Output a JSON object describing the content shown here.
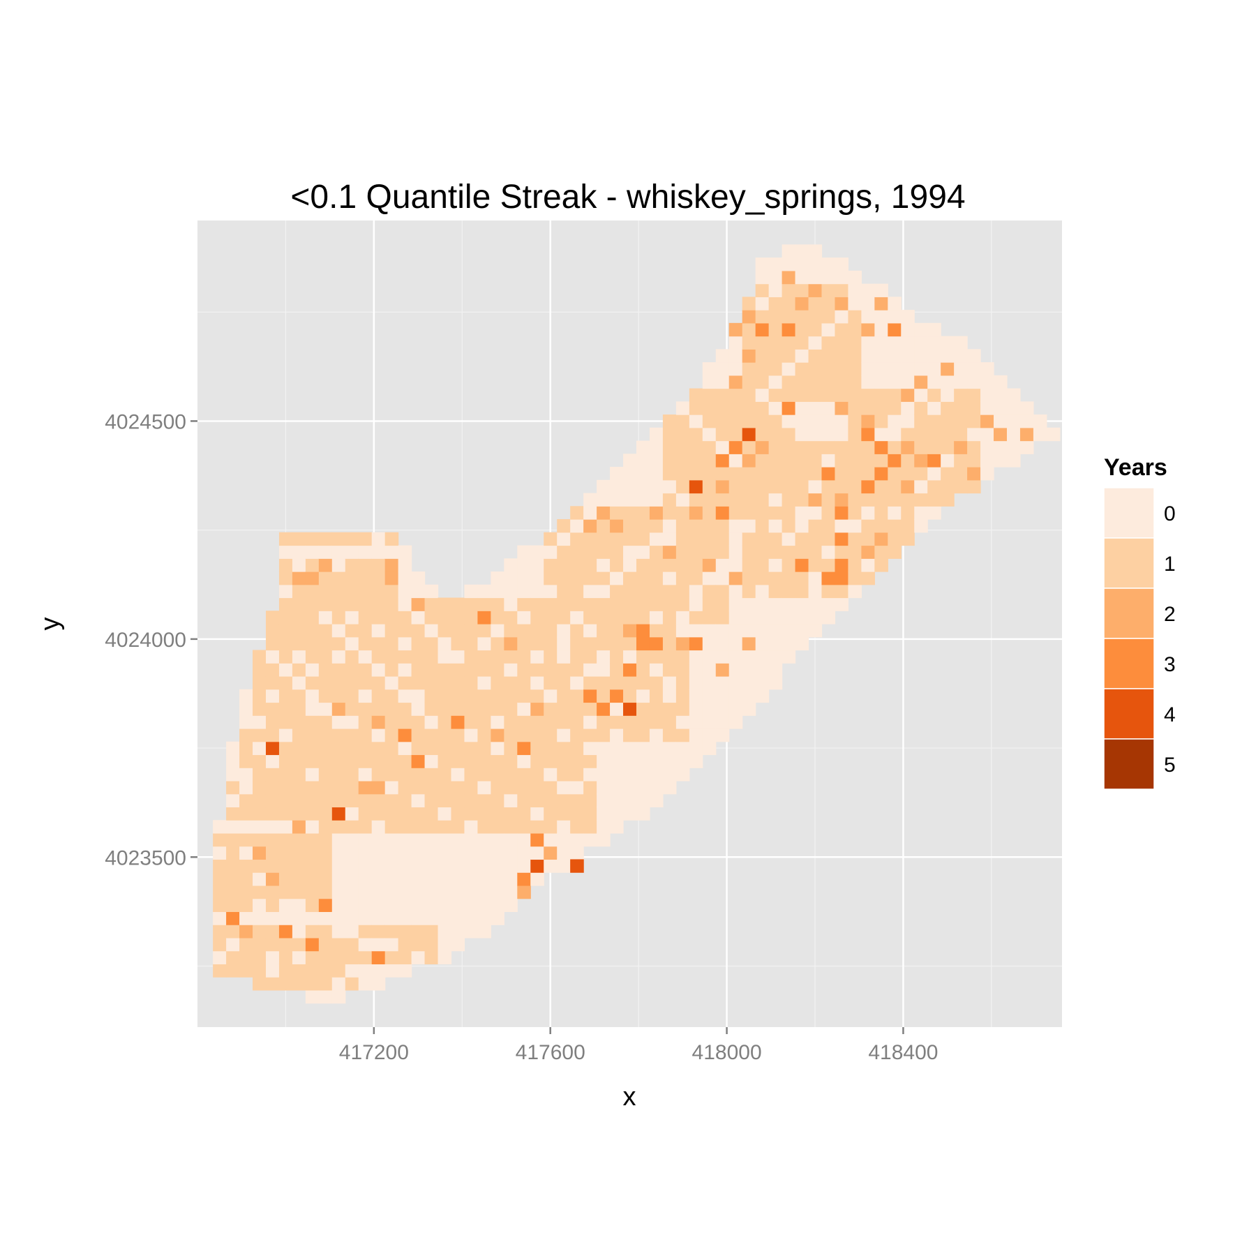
{
  "chart_data": {
    "type": "heatmap",
    "title": "<0.1 Quantile Streak - whiskey_springs, 1994",
    "xlabel": "x",
    "ylabel": "y",
    "xlim": [
      416800,
      418760
    ],
    "ylim": [
      4023110,
      4024960
    ],
    "x_ticks": [
      417200,
      417600,
      418000,
      418400
    ],
    "y_ticks": [
      4023500,
      4024000,
      4024500
    ],
    "cell_size": 30,
    "grid": true,
    "legend": {
      "title": "Years",
      "position": "right",
      "levels": [
        0,
        1,
        2,
        3,
        4,
        5
      ],
      "labels": [
        "0",
        "1",
        "2",
        "3",
        "4",
        "5"
      ],
      "colors": [
        "#fdebdd",
        "#fdd0a2",
        "#fdae6b",
        "#fd8d3c",
        "#e6550d",
        "#a63603"
      ]
    },
    "base_value": 0,
    "regions": [
      {
        "value": 1,
        "x": [
          416850,
          417100
        ],
        "y": [
          4023290,
          4023680
        ]
      },
      {
        "value": 1,
        "x": [
          416900,
          417140
        ],
        "y": [
          4023680,
          4023820
        ]
      },
      {
        "value": 1,
        "x": [
          416950,
          417420
        ],
        "y": [
          4023820,
          4024080
        ]
      },
      {
        "value": 1,
        "x": [
          417000,
          417260
        ],
        "y": [
          4024080,
          4024250
        ]
      },
      {
        "value": 1,
        "x": [
          417100,
          417700
        ],
        "y": [
          4023560,
          4023800
        ]
      },
      {
        "value": 1,
        "x": [
          417400,
          417900
        ],
        "y": [
          4023780,
          4024080
        ]
      },
      {
        "value": 1,
        "x": [
          417600,
          418000
        ],
        "y": [
          4024050,
          4024300
        ]
      },
      {
        "value": 1,
        "x": [
          417880,
          418150
        ],
        "y": [
          4024300,
          4024560
        ]
      },
      {
        "value": 1,
        "x": [
          418050,
          418420
        ],
        "y": [
          4024100,
          4024450
        ]
      },
      {
        "value": 1,
        "x": [
          418300,
          418560
        ],
        "y": [
          4024330,
          4024560
        ]
      },
      {
        "value": 1,
        "x": [
          418050,
          418300
        ],
        "y": [
          4024560,
          4024800
        ]
      },
      {
        "value": 1,
        "x": [
          416850,
          417160
        ],
        "y": [
          4023220,
          4023300
        ]
      },
      {
        "value": 1,
        "x": [
          417160,
          417340
        ],
        "y": [
          4023260,
          4023340
        ]
      }
    ],
    "cells": [
      [
        417110,
        4023590,
        4
      ],
      [
        416960,
        4023760,
        4
      ],
      [
        417210,
        4023260,
        3
      ],
      [
        417000,
        4023320,
        3
      ],
      [
        417070,
        4023300,
        3
      ],
      [
        416870,
        4023360,
        3
      ],
      [
        417100,
        4023380,
        3
      ],
      [
        416920,
        4023330,
        2
      ],
      [
        416980,
        4023440,
        2
      ],
      [
        416950,
        4023520,
        2
      ],
      [
        417040,
        4023560,
        2
      ],
      [
        417180,
        4023650,
        2
      ],
      [
        417210,
        4023650,
        2
      ],
      [
        417310,
        4023720,
        3
      ],
      [
        417280,
        4023780,
        3
      ],
      [
        417390,
        4023810,
        3
      ],
      [
        417480,
        4023790,
        2
      ],
      [
        417540,
        4023740,
        3
      ],
      [
        417560,
        4023530,
        3
      ],
      [
        417580,
        4023470,
        4
      ],
      [
        417600,
        4023520,
        2
      ],
      [
        417650,
        4023490,
        4
      ],
      [
        417530,
        4023460,
        3
      ],
      [
        417540,
        4023420,
        2
      ],
      [
        417680,
        4023860,
        3
      ],
      [
        417710,
        4023850,
        3
      ],
      [
        417780,
        4023840,
        4
      ],
      [
        417760,
        4023860,
        3
      ],
      [
        417770,
        4023940,
        3
      ],
      [
        417800,
        4023990,
        3
      ],
      [
        417840,
        4023990,
        3
      ],
      [
        417780,
        4024020,
        2
      ],
      [
        417820,
        4024030,
        3
      ],
      [
        417940,
        4023990,
        3
      ],
      [
        417900,
        4024000,
        2
      ],
      [
        418000,
        4023940,
        2
      ],
      [
        418060,
        4023980,
        2
      ],
      [
        417580,
        4023850,
        2
      ],
      [
        417450,
        4024060,
        3
      ],
      [
        417500,
        4024000,
        2
      ],
      [
        417200,
        4023820,
        2
      ],
      [
        417130,
        4023830,
        2
      ],
      [
        417310,
        4024080,
        2
      ],
      [
        417030,
        4024140,
        2
      ],
      [
        417060,
        4024130,
        2
      ],
      [
        417090,
        4024180,
        2
      ],
      [
        417250,
        4024140,
        2
      ],
      [
        417250,
        4024180,
        2
      ],
      [
        417920,
        4024360,
        4
      ],
      [
        418000,
        4024350,
        2
      ],
      [
        417920,
        4024300,
        2
      ],
      [
        418000,
        4024280,
        3
      ],
      [
        417980,
        4024410,
        3
      ],
      [
        418050,
        4024420,
        2
      ],
      [
        418060,
        4024470,
        4
      ],
      [
        418020,
        4024450,
        3
      ],
      [
        418070,
        4024440,
        2
      ],
      [
        418160,
        4024180,
        3
      ],
      [
        418240,
        4024150,
        3
      ],
      [
        418270,
        4024140,
        3
      ],
      [
        418250,
        4024180,
        3
      ],
      [
        418260,
        4024220,
        3
      ],
      [
        418270,
        4024280,
        3
      ],
      [
        418260,
        4024320,
        2
      ],
      [
        418200,
        4024330,
        2
      ],
      [
        418220,
        4024370,
        3
      ],
      [
        418320,
        4024360,
        3
      ],
      [
        418350,
        4024390,
        3
      ],
      [
        418380,
        4024410,
        3
      ],
      [
        418400,
        4024360,
        2
      ],
      [
        418430,
        4024410,
        2
      ],
      [
        418360,
        4024440,
        3
      ],
      [
        418310,
        4024480,
        3
      ],
      [
        418330,
        4024500,
        2
      ],
      [
        418480,
        4024400,
        3
      ],
      [
        418520,
        4024430,
        2
      ],
      [
        418550,
        4024390,
        2
      ],
      [
        418600,
        4024510,
        2
      ],
      [
        418610,
        4024460,
        2
      ],
      [
        418680,
        4024480,
        2
      ],
      [
        418420,
        4024450,
        2
      ],
      [
        418130,
        4024540,
        3
      ],
      [
        418270,
        4024530,
        2
      ],
      [
        418400,
        4024570,
        2
      ],
      [
        418440,
        4024600,
        2
      ],
      [
        418490,
        4024610,
        2
      ],
      [
        418380,
        4024720,
        3
      ],
      [
        418320,
        4024700,
        2
      ],
      [
        418080,
        4024720,
        3
      ],
      [
        418140,
        4024700,
        3
      ],
      [
        418060,
        4024730,
        2
      ],
      [
        418030,
        4024700,
        2
      ],
      [
        418060,
        4024640,
        2
      ],
      [
        418030,
        4024580,
        2
      ],
      [
        418350,
        4024780,
        2
      ],
      [
        418250,
        4024770,
        2
      ],
      [
        418170,
        4024760,
        2
      ],
      [
        418210,
        4024790,
        2
      ],
      [
        418140,
        4024820,
        2
      ],
      [
        417690,
        4024260,
        2
      ],
      [
        417720,
        4024300,
        2
      ],
      [
        417760,
        4024250,
        2
      ],
      [
        417830,
        4024290,
        2
      ],
      [
        417870,
        4024200,
        2
      ],
      [
        417950,
        4024180,
        2
      ],
      [
        418010,
        4024150,
        2
      ],
      [
        418330,
        4024200,
        2
      ],
      [
        418360,
        4024230,
        2
      ]
    ],
    "zero_cells": [
      [
        418180,
        4024880
      ],
      [
        418200,
        4024860
      ],
      [
        418230,
        4024850
      ],
      [
        418300,
        4024840
      ],
      [
        418300,
        4024810
      ],
      [
        418340,
        4024790
      ],
      [
        418400,
        4024770
      ],
      [
        418420,
        4024730
      ],
      [
        418520,
        4024620
      ],
      [
        418560,
        4024580
      ],
      [
        418620,
        4024540
      ],
      [
        418700,
        4024500
      ],
      [
        418680,
        4024460
      ],
      [
        418660,
        4024420
      ],
      [
        418580,
        4024480
      ],
      [
        418620,
        4024480
      ],
      [
        418500,
        4024560
      ],
      [
        418460,
        4024530
      ],
      [
        418420,
        4024500
      ],
      [
        418390,
        4024470
      ],
      [
        418380,
        4024300
      ],
      [
        418330,
        4024290
      ],
      [
        418300,
        4024260
      ],
      [
        418200,
        4024280
      ],
      [
        418140,
        4024230
      ],
      [
        418110,
        4024270
      ],
      [
        418120,
        4024320
      ],
      [
        418170,
        4024250
      ],
      [
        418210,
        4024110
      ],
      [
        418180,
        4024090
      ],
      [
        418110,
        4024060
      ],
      [
        418080,
        4024030
      ],
      [
        418030,
        4024090
      ],
      [
        417980,
        4024130
      ],
      [
        417940,
        4024090
      ],
      [
        417910,
        4024040
      ],
      [
        417850,
        4024060
      ],
      [
        417870,
        4024140
      ],
      [
        417860,
        4024230
      ],
      [
        417770,
        4024200
      ],
      [
        417720,
        4024170
      ],
      [
        417690,
        4024110
      ],
      [
        417660,
        4024060
      ],
      [
        417640,
        4024020
      ],
      [
        417630,
        4023970
      ],
      [
        417600,
        4024110
      ],
      [
        417570,
        4024160
      ],
      [
        417520,
        4024070
      ],
      [
        417560,
        4023900
      ],
      [
        417680,
        4023920
      ],
      [
        417720,
        4023950
      ],
      [
        417800,
        4023880
      ],
      [
        417880,
        4023880
      ],
      [
        417920,
        4023860
      ],
      [
        417930,
        4023830
      ],
      [
        417950,
        4023920
      ],
      [
        417850,
        4023940
      ],
      [
        417740,
        4023780
      ],
      [
        417680,
        4023700
      ],
      [
        417640,
        4023660
      ],
      [
        417720,
        4023680
      ],
      [
        417760,
        4023640
      ],
      [
        417790,
        4023710
      ],
      [
        417840,
        4023720
      ],
      [
        417360,
        4023960
      ],
      [
        417400,
        4023970
      ],
      [
        417440,
        4024000
      ],
      [
        417330,
        4024020
      ],
      [
        417260,
        4024000
      ],
      [
        417200,
        4024020
      ],
      [
        417150,
        4024050
      ],
      [
        417130,
        4024180
      ],
      [
        417170,
        4024200
      ],
      [
        417210,
        4024240
      ],
      [
        417280,
        4024230
      ],
      [
        417290,
        4024150
      ],
      [
        417020,
        4024180
      ],
      [
        417010,
        4024100
      ],
      [
        417040,
        4023970
      ],
      [
        417050,
        4023930
      ],
      [
        417120,
        4023950
      ],
      [
        417170,
        4023960
      ],
      [
        417270,
        4023920
      ],
      [
        417310,
        4023870
      ],
      [
        417180,
        4023860
      ],
      [
        417150,
        4023800
      ],
      [
        417050,
        4023850
      ],
      [
        416980,
        4023880
      ],
      [
        416940,
        4023800
      ],
      [
        416930,
        4023740
      ],
      [
        416910,
        4023700
      ],
      [
        416900,
        4023660
      ],
      [
        416880,
        4023620
      ],
      [
        416860,
        4023560
      ],
      [
        416860,
        4023500
      ],
      [
        416910,
        4023520
      ],
      [
        416930,
        4023460
      ],
      [
        416870,
        4023290
      ],
      [
        416860,
        4023260
      ],
      [
        416950,
        4023400
      ],
      [
        416990,
        4023400
      ],
      [
        417040,
        4023400
      ],
      [
        417040,
        4023330
      ],
      [
        416960,
        4023270
      ],
      [
        417160,
        4023230
      ],
      [
        417200,
        4023300
      ],
      [
        417250,
        4023290
      ],
      [
        417290,
        4023280
      ]
    ]
  }
}
